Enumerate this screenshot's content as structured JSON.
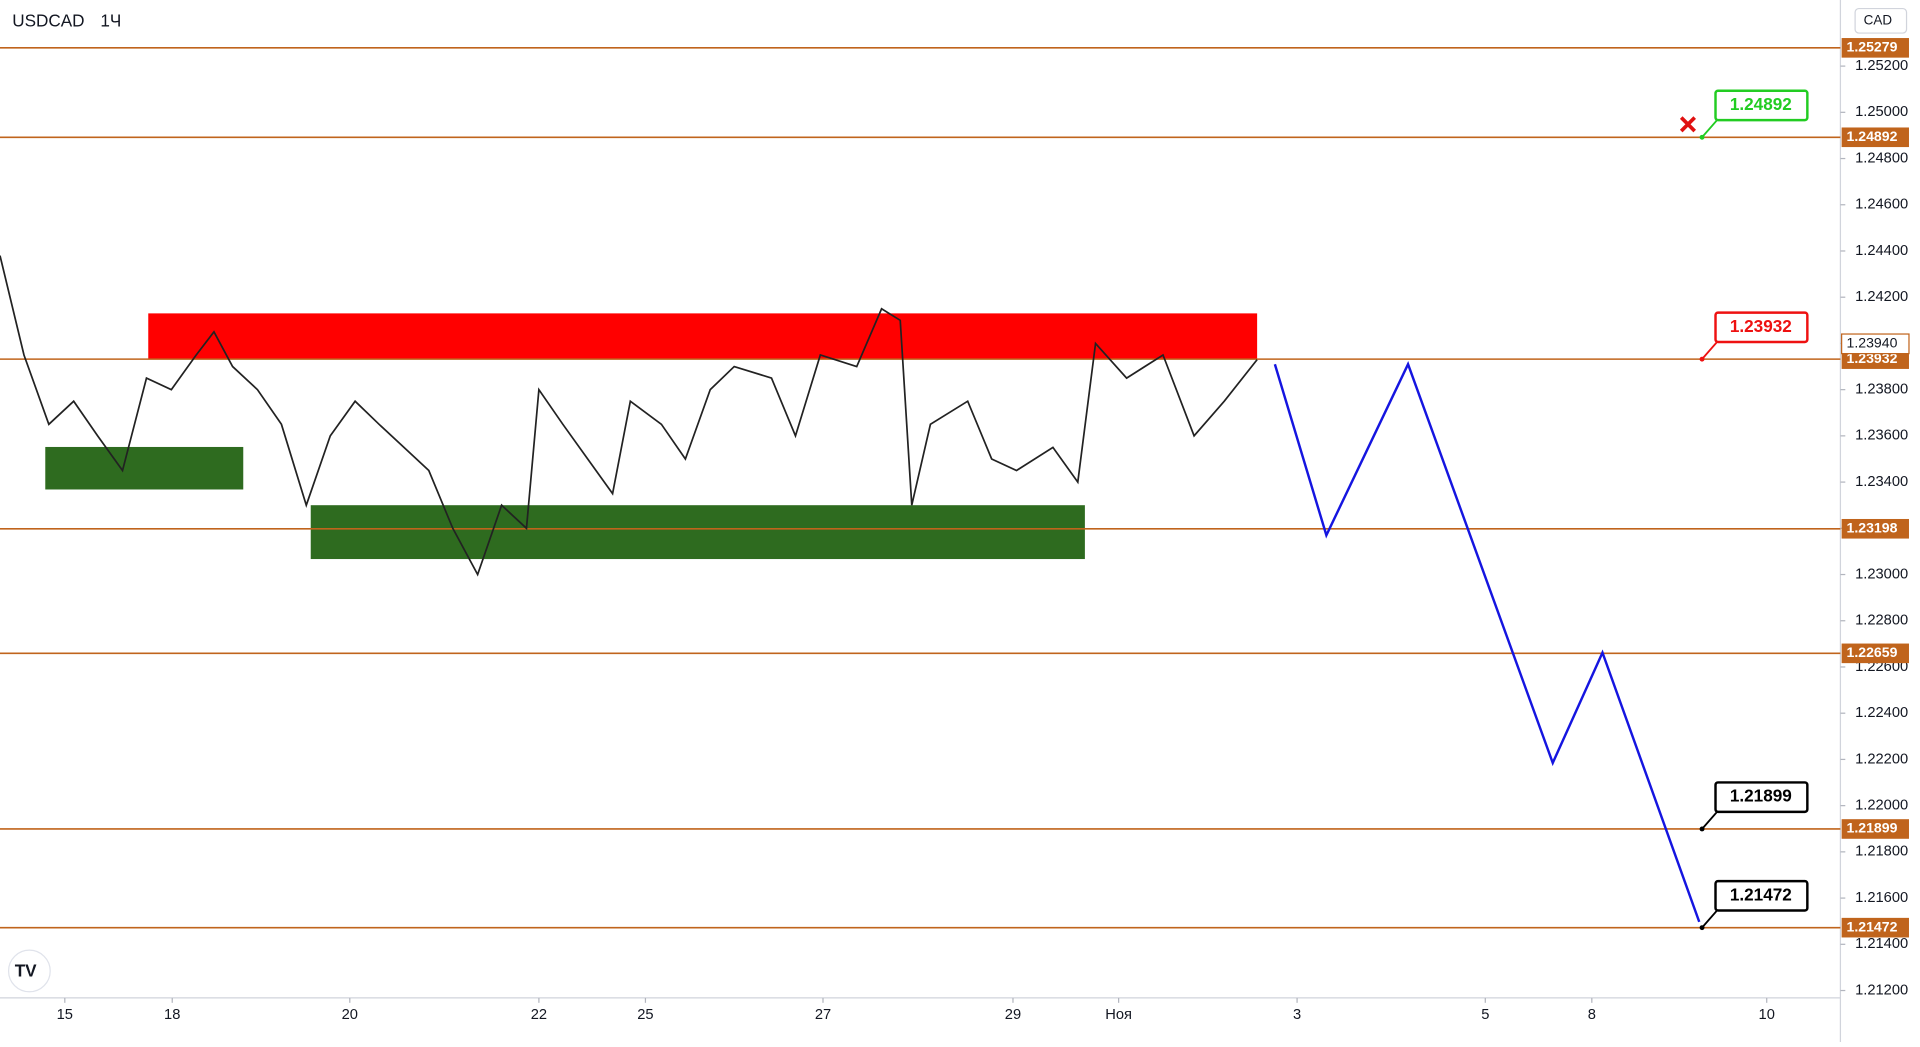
{
  "header": {
    "symbol": "USDCAD",
    "interval": "1Ч",
    "currency": "CAD"
  },
  "chart_data": {
    "type": "line",
    "color": "#222222",
    "x": [
      -0.73,
      -0.46,
      -0.18,
      0.1,
      0.37,
      0.65,
      0.92,
      1.2,
      1.48,
      1.68,
      1.89,
      2.17,
      2.44,
      2.72,
      2.99,
      3.27,
      3.54,
      3.82,
      4.1,
      4.37,
      4.65,
      4.92,
      5.2,
      5.34,
      5.61,
      5.89,
      6.17,
      6.37,
      6.72,
      6.99,
      7.27,
      7.54,
      7.96,
      8.23,
      8.51,
      8.92,
      9.2,
      9.41,
      9.54,
      9.75,
      10.17,
      10.44,
      10.72,
      11.13,
      11.41,
      11.61,
      11.96,
      12.37,
      12.72,
      13.06,
      13.43
    ],
    "values": [
      1.2438,
      1.2395,
      1.2365,
      1.2375,
      1.236,
      1.2345,
      1.2385,
      1.238,
      1.2395,
      1.2405,
      1.239,
      1.238,
      1.2365,
      1.233,
      1.236,
      1.2375,
      1.2365,
      1.2355,
      1.2345,
      1.232,
      1.23,
      1.233,
      1.232,
      1.238,
      1.2365,
      1.235,
      1.2335,
      1.2375,
      1.2365,
      1.235,
      1.238,
      1.239,
      1.2385,
      1.236,
      1.2395,
      1.239,
      1.2415,
      1.241,
      1.233,
      1.2365,
      1.2375,
      1.235,
      1.2345,
      1.2355,
      1.234,
      1.24,
      1.2385,
      1.2395,
      1.236,
      1.2375,
      1.2393
    ],
    "xlim": [
      -0.73,
      20.0
    ],
    "xticks": [
      {
        "value": 0,
        "label": "15"
      },
      {
        "value": 1.21,
        "label": "18"
      },
      {
        "value": 3.21,
        "label": "20"
      },
      {
        "value": 5.34,
        "label": "22"
      },
      {
        "value": 6.54,
        "label": "25"
      },
      {
        "value": 8.54,
        "label": "27"
      },
      {
        "value": 10.68,
        "label": "29"
      },
      {
        "value": 11.87,
        "label": "Ноя"
      },
      {
        "value": 13.88,
        "label": "3"
      },
      {
        "value": 16.0,
        "label": "5"
      },
      {
        "value": 17.2,
        "label": "8"
      },
      {
        "value": 19.17,
        "label": "10"
      }
    ],
    "ylim": [
      1.21168,
      1.25486
    ],
    "yticks": [
      {
        "value": 1.252,
        "label": "1.25200"
      },
      {
        "value": 1.25,
        "label": "1.25000"
      },
      {
        "value": 1.248,
        "label": "1.24800"
      },
      {
        "value": 1.246,
        "label": "1.24600"
      },
      {
        "value": 1.244,
        "label": "1.24400"
      },
      {
        "value": 1.242,
        "label": "1.24200"
      },
      {
        "value": 1.24,
        "label": "1.24000"
      },
      {
        "value": 1.238,
        "label": "1.23800"
      },
      {
        "value": 1.236,
        "label": "1.23600"
      },
      {
        "value": 1.234,
        "label": "1.23400"
      },
      {
        "value": 1.232,
        "label": "1.23200"
      },
      {
        "value": 1.23,
        "label": "1.23000"
      },
      {
        "value": 1.228,
        "label": "1.22800"
      },
      {
        "value": 1.226,
        "label": "1.22600"
      },
      {
        "value": 1.224,
        "label": "1.22400"
      },
      {
        "value": 1.222,
        "label": "1.22200"
      },
      {
        "value": 1.22,
        "label": "1.22000"
      },
      {
        "value": 1.218,
        "label": "1.21800"
      },
      {
        "value": 1.216,
        "label": "1.21600"
      },
      {
        "value": 1.214,
        "label": "1.21400"
      },
      {
        "value": 1.212,
        "label": "1.21200"
      }
    ],
    "levels": [
      1.25279,
      1.24892,
      1.23932,
      1.23198,
      1.22659,
      1.21899,
      1.21472
    ],
    "level_color": "#c0641c",
    "last_price": {
      "value": 1.2394,
      "label": "1.23940"
    },
    "callouts": [
      {
        "value": 1.24892,
        "color": "#22cc22"
      },
      {
        "value": 1.23932,
        "color": "#ee1111"
      },
      {
        "value": 1.21899,
        "color": "#000000"
      },
      {
        "value": 1.21472,
        "color": "#000000"
      }
    ],
    "zones": [
      {
        "x": [
          0.94,
          13.43
        ],
        "y": [
          1.23932,
          1.2413
        ],
        "color": "#ff0000"
      },
      {
        "x": [
          -0.22,
          2.01
        ],
        "y": [
          1.23368,
          1.23552
        ],
        "color": "#2e6b1f"
      },
      {
        "x": [
          2.77,
          11.49
        ],
        "y": [
          1.23067,
          1.233
        ],
        "color": "#2e6b1f"
      }
    ],
    "forecast": {
      "color": "#1515e0",
      "x": [
        13.63,
        14.21,
        15.13,
        16.76,
        17.32,
        18.41
      ],
      "values": [
        1.2391,
        1.2317,
        1.2391,
        1.22185,
        1.22662,
        1.21497
      ]
    }
  }
}
